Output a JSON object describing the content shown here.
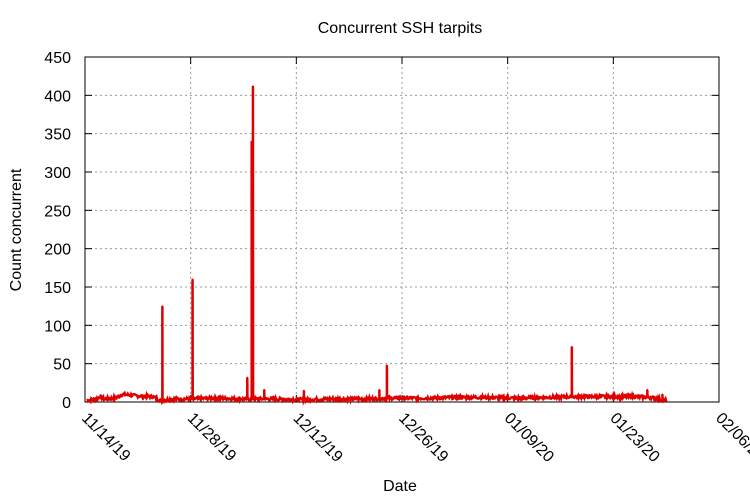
{
  "chart_data": {
    "type": "line",
    "title": "Concurrent SSH tarpits",
    "xlabel": "Date",
    "ylabel": "Count concurrent",
    "x_tick_labels": [
      "11/14/19",
      "11/28/19",
      "12/12/19",
      "12/26/19",
      "01/09/20",
      "01/23/20",
      "02/06/20"
    ],
    "y_ticks": [
      0,
      50,
      100,
      150,
      200,
      250,
      300,
      350,
      400,
      450
    ],
    "xlim": [
      "2019-11-14",
      "2020-02-06"
    ],
    "ylim": [
      0,
      450
    ],
    "grid": true,
    "series": [
      {
        "color": "#e00000",
        "baseline": [
          [
            "2019-11-14 06:00",
            2
          ],
          [
            "2019-11-15 12:00",
            4
          ],
          [
            "2019-11-16 00:00",
            7
          ],
          [
            "2019-11-16 12:00",
            4
          ],
          [
            "2019-11-18 00:00",
            5
          ],
          [
            "2019-11-19 00:00",
            10
          ],
          [
            "2019-11-21 00:00",
            8
          ],
          [
            "2019-11-23 00:00",
            7
          ],
          [
            "2019-11-24 00:00",
            2
          ],
          [
            "2019-11-26 00:00",
            4
          ],
          [
            "2019-11-28 00:00",
            4
          ],
          [
            "2019-12-01 00:00",
            5
          ],
          [
            "2019-12-05 00:00",
            4
          ],
          [
            "2019-12-09 00:00",
            4
          ],
          [
            "2019-12-13 00:00",
            3
          ],
          [
            "2019-12-17 00:00",
            4
          ],
          [
            "2019-12-21 00:00",
            4
          ],
          [
            "2019-12-25 00:00",
            5
          ],
          [
            "2019-12-29 00:00",
            5
          ],
          [
            "2020-01-02 00:00",
            6
          ],
          [
            "2020-01-06 00:00",
            6
          ],
          [
            "2020-01-10 00:00",
            5
          ],
          [
            "2020-01-14 00:00",
            6
          ],
          [
            "2020-01-18 00:00",
            7
          ],
          [
            "2020-01-22 00:00",
            7
          ],
          [
            "2020-01-26 00:00",
            7
          ],
          [
            "2020-01-28 00:00",
            6
          ],
          [
            "2020-01-30 00:00",
            2
          ]
        ],
        "spikes": [
          [
            "2019-11-24 06:00",
            125
          ],
          [
            "2019-11-28 06:00",
            160
          ],
          [
            "2019-12-05 12:00",
            32
          ],
          [
            "2019-12-06 02:00",
            340
          ],
          [
            "2019-12-06 06:00",
            412
          ],
          [
            "2019-12-07 18:00",
            16
          ],
          [
            "2019-12-13 00:00",
            15
          ],
          [
            "2019-12-23 00:00",
            16
          ],
          [
            "2019-12-24 00:00",
            48
          ],
          [
            "2020-01-09 00:00",
            10
          ],
          [
            "2020-01-17 12:00",
            72
          ],
          [
            "2020-01-27 12:00",
            16
          ],
          [
            "2020-01-29 12:00",
            10
          ]
        ]
      }
    ]
  }
}
